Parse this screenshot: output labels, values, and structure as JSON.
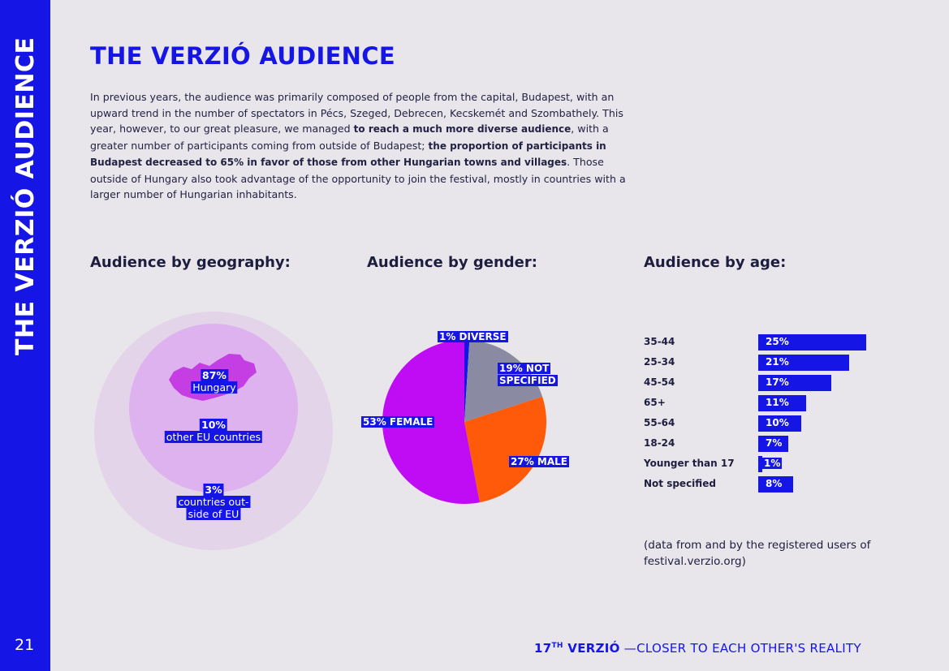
{
  "sidebar": {
    "title": "THE VERZIÓ AUDIENCE",
    "page_number": "21"
  },
  "page": {
    "title": "THE VERZIÓ AUDIENCE",
    "intro": {
      "p1": "In previous years, the audience was primarily composed of people from the capital, Budapest, with an upward trend in the number of spectators in Pécs, Szeged, Debrecen, Kecskemét and Szombathely. This year, however, to our great pleasure, we managed ",
      "b1": "to reach a much more diverse audience",
      "p2": ", with a greater number of participants coming from outside of Budapest; ",
      "b2": "the proportion of participants in Budapest decreased to 65% in favor of those from other Hungarian towns and villages",
      "p3": ". Those outside of Hungary also took advantage of the opportunity to join the festival, mostly in countries with a larger number of Hungarian inhabitants."
    }
  },
  "sections": {
    "geography": "Audience by geography:",
    "gender": "Audience by gender:",
    "age": "Audience by age:"
  },
  "colors": {
    "accent": "#1515e6",
    "female": "#bf0cf5",
    "male": "#ff5a0a",
    "not_specified": "#8a8ba3",
    "diverse": "#1515e6",
    "geo_outer": "#e3d4ea",
    "geo_mid": "#ddb2ee",
    "geo_inner": "#c43ee3"
  },
  "chart_data": [
    {
      "type": "bubble",
      "title": "Audience by geography:",
      "labels": [
        {
          "pct": "87%",
          "name": "Hungary"
        },
        {
          "pct": "10%",
          "name": "other EU countries"
        },
        {
          "pct": "3%",
          "name_lines": [
            "countries out-",
            "side of EU"
          ]
        }
      ],
      "values": [
        87,
        10,
        3
      ]
    },
    {
      "type": "pie",
      "title": "Audience by gender:",
      "slices": [
        {
          "name": "DIVERSE",
          "value": 1,
          "label": "1% DIVERSE"
        },
        {
          "name": "NOT SPECIFIED",
          "value": 19,
          "label_lines": [
            "19% NOT",
            "SPECIFIED"
          ]
        },
        {
          "name": "MALE",
          "value": 27,
          "label": "27% MALE"
        },
        {
          "name": "FEMALE",
          "value": 53,
          "label": "53% FEMALE"
        }
      ]
    },
    {
      "type": "bar",
      "orientation": "horizontal",
      "title": "Audience by age:",
      "categories": [
        "35-44",
        "25-34",
        "45-54",
        "65+",
        "55-64",
        "18-24",
        "Younger than 17",
        "Not specified"
      ],
      "values": [
        25,
        21,
        17,
        11,
        10,
        7,
        1,
        8
      ],
      "value_labels": [
        "25%",
        "21%",
        "17%",
        "11%",
        "10%",
        "7%",
        "1%",
        "8%"
      ]
    }
  ],
  "note": "(data from and by the registered users of festival.verzio.org)",
  "footer": {
    "edition": "17",
    "edition_sup": "TH",
    "brand": " VERZIÓ",
    "tagline": " —CLOSER TO EACH OTHER'S REALITY"
  }
}
